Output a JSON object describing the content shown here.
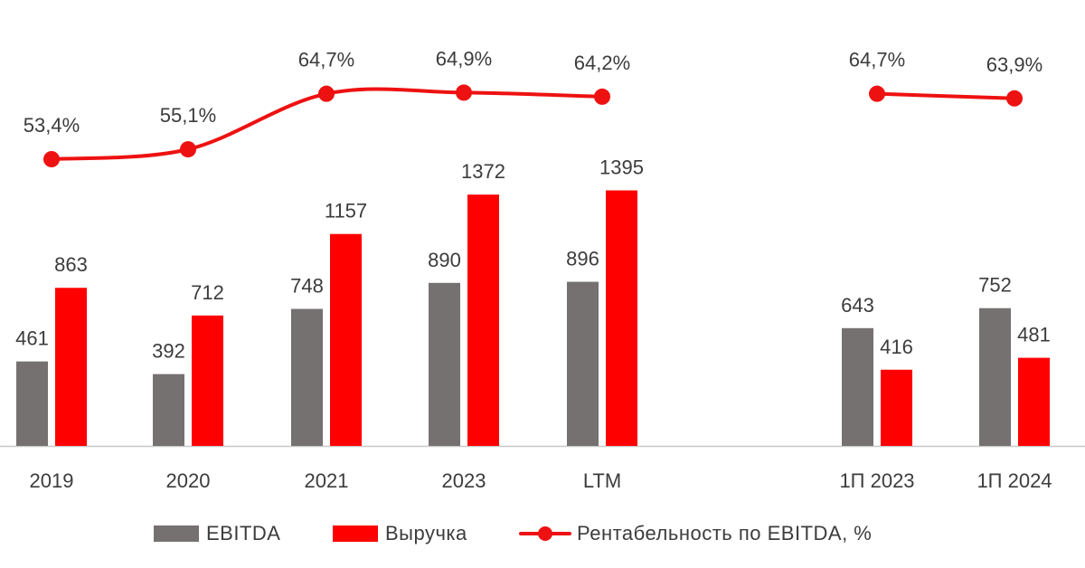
{
  "colors": {
    "ebitda": "#767171",
    "revenue": "#ff0000",
    "margin": "#ee1111",
    "axis": "#c8c8c8",
    "text": "#3c3c3c"
  },
  "legend": {
    "ebitda": "EBITDA",
    "revenue": "Выручка",
    "margin": "Рентабельность по EBITDA, %"
  },
  "chart_data": {
    "type": "bar",
    "title": "",
    "xlabel": "",
    "ylabel": "",
    "ylim": [
      0,
      1400
    ],
    "y2lim": [
      0,
      100
    ],
    "grid": false,
    "legend_position": "bottom",
    "categories": [
      "2019",
      "2020",
      "2021",
      "2023",
      "LTM",
      "1П 2023",
      "1П 2024"
    ],
    "series": [
      {
        "name": "EBITDA",
        "type": "bar",
        "values": [
          461,
          392,
          748,
          890,
          896,
          643,
          752
        ],
        "labels": [
          "461",
          "392",
          "748",
          "890",
          "896",
          "643",
          "752"
        ]
      },
      {
        "name": "Выручка",
        "type": "bar",
        "values": [
          863,
          712,
          1157,
          1372,
          1395,
          416,
          481
        ],
        "labels": [
          "863",
          "712",
          "1157",
          "1372",
          "1395",
          "416",
          "481"
        ]
      },
      {
        "name": "Рентабельность по EBITDA, %",
        "type": "line",
        "axis": "secondary",
        "segments": [
          [
            0,
            4
          ],
          [
            5,
            6
          ]
        ],
        "values": [
          53.4,
          55.1,
          64.7,
          64.9,
          64.2,
          64.7,
          63.9
        ],
        "labels": [
          "53,4%",
          "55,1%",
          "64,7%",
          "64,9%",
          "64,2%",
          "64,7%",
          "63,9%"
        ]
      }
    ]
  }
}
